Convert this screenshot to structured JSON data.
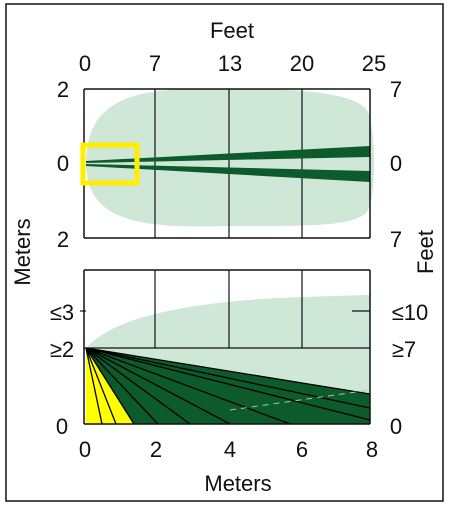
{
  "top_scale": {
    "unit_label": "Feet",
    "ticks": [
      "0",
      "7",
      "13",
      "20",
      "25"
    ]
  },
  "top_panel": {
    "left_ticks": [
      "2",
      "0",
      "2"
    ],
    "right_ticks": [
      "7",
      "0",
      "7"
    ]
  },
  "bottom_panel": {
    "left_ticks": [
      "≤3",
      "≥2",
      "0"
    ],
    "right_ticks": [
      "≤10",
      "≥7",
      "0"
    ]
  },
  "bottom_scale": {
    "unit_label": "Meters",
    "ticks": [
      "0",
      "2",
      "4",
      "6",
      "8"
    ]
  },
  "side_labels": {
    "left": "Meters",
    "right": "Feet"
  },
  "colors": {
    "coverage_zone": "#cfe7d6",
    "detection_beam": "#0d5a2a",
    "creep_zone": "#ffff00",
    "highlight_box": "#ffee00",
    "lines": "#111111"
  }
}
